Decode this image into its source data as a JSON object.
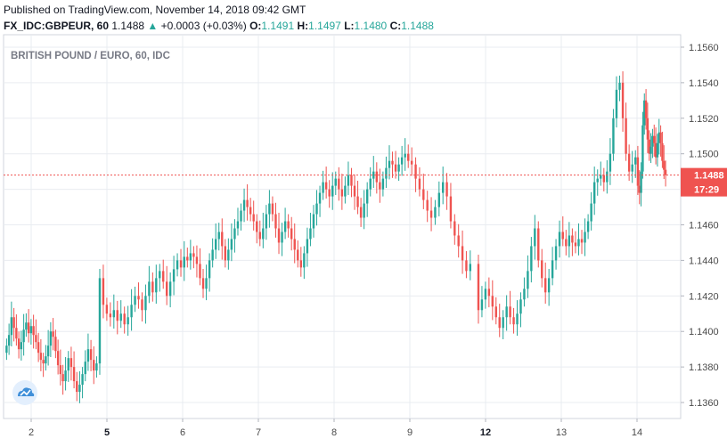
{
  "header": {
    "published": "Published on TradingView.com, November 14, 2018 09:42 GMT",
    "symbol": "FX_IDC:GBPEUR, 60",
    "last": "1.1488",
    "change_arrow": "▲",
    "change": "+0.0003 (+0.03%)",
    "o_label": "O:",
    "o_value": "1.1491",
    "h_label": "H:",
    "h_value": "1.1497",
    "l_label": "L:",
    "l_value": "1.1480",
    "c_label": "C:",
    "c_value": "1.1488"
  },
  "colors": {
    "up": "#26a69a",
    "down": "#ef5350",
    "grid": "#e9ecf1",
    "price_line": "#ef5350",
    "tag_bg": "#ef5350"
  },
  "icons": {
    "watermark": "tradingview-cloud-icon"
  },
  "chart_data": {
    "type": "candlestick",
    "title": "BRITISH POUND / EURO, 60, IDC",
    "y_ticks": [
      "1.1360",
      "1.1380",
      "1.1400",
      "1.1420",
      "1.1440",
      "1.1460",
      "1.1480",
      "1.1500",
      "1.1520",
      "1.1540",
      "1.1560"
    ],
    "ylim": [
      1.1351,
      1.1567
    ],
    "x_ticks": [
      {
        "label": "2",
        "bold": false
      },
      {
        "label": "5",
        "bold": true
      },
      {
        "label": "6",
        "bold": false
      },
      {
        "label": "7",
        "bold": false
      },
      {
        "label": "8",
        "bold": false
      },
      {
        "label": "9",
        "bold": false
      },
      {
        "label": "12",
        "bold": true
      },
      {
        "label": "13",
        "bold": false
      },
      {
        "label": "14",
        "bold": false
      }
    ],
    "last_price": "1.1488",
    "countdown": "17:29",
    "grid": true,
    "series_close": [
      {
        "day": "2",
        "values": [
          1.1392,
          1.1398,
          1.1408,
          1.1402,
          1.1396,
          1.139,
          1.1394,
          1.1401,
          1.1405,
          1.1399,
          1.1403,
          1.1398,
          1.1394,
          1.1388,
          1.1384,
          1.1382,
          1.1386,
          1.1392,
          1.14,
          1.1397,
          1.1389,
          1.1381,
          1.1376,
          1.1372
        ]
      },
      {
        "day": "2 (cont.)",
        "values": [
          1.1378,
          1.1385,
          1.138,
          1.1372,
          1.1366,
          1.137,
          1.1376,
          1.1383,
          1.139,
          1.1384,
          1.1378,
          1.1382
        ]
      },
      {
        "day": "5",
        "values": [
          1.143,
          1.1415,
          1.141,
          1.1408,
          1.1412,
          1.1406,
          1.141,
          1.1404,
          1.1408,
          1.1415,
          1.142,
          1.1418,
          1.1412,
          1.142,
          1.1428,
          1.1422,
          1.143,
          1.1434,
          1.1428,
          1.142,
          1.1428,
          1.1435,
          1.144,
          1.1436
        ]
      },
      {
        "day": "6",
        "values": [
          1.1442,
          1.144,
          1.1444,
          1.1442,
          1.1438,
          1.143,
          1.1424,
          1.143,
          1.144,
          1.1446,
          1.1452,
          1.1456,
          1.1448,
          1.144,
          1.1446,
          1.1452,
          1.1458,
          1.1462,
          1.1468,
          1.1474,
          1.147,
          1.1466,
          1.1462,
          1.1456
        ]
      },
      {
        "day": "7",
        "values": [
          1.1452,
          1.1458,
          1.1466,
          1.1472,
          1.1466,
          1.1458,
          1.145,
          1.1456,
          1.1462,
          1.1458,
          1.1452,
          1.1446,
          1.144,
          1.1436,
          1.1444,
          1.1452,
          1.1458,
          1.1466,
          1.1472,
          1.1478,
          1.1484,
          1.148,
          1.1476,
          1.1482
        ]
      },
      {
        "day": "8",
        "values": [
          1.1486,
          1.148,
          1.1476,
          1.1482,
          1.1488,
          1.1482,
          1.1476,
          1.147,
          1.1464,
          1.1472,
          1.148,
          1.1486,
          1.149,
          1.1484,
          1.148,
          1.1486,
          1.1492,
          1.1496,
          1.1494,
          1.149,
          1.1494,
          1.1498,
          1.15,
          1.1496
        ]
      },
      {
        "day": "9",
        "values": [
          1.1494,
          1.1486,
          1.148,
          1.1474,
          1.1468,
          1.1464,
          1.147,
          1.1478,
          1.1484,
          1.1476,
          1.1462,
          1.1454,
          1.1448,
          1.144,
          1.1434,
          1.1438
        ]
      },
      {
        "day": "12",
        "values": [
          1.1412,
          1.1418,
          1.1424,
          1.142,
          1.1414,
          1.1408,
          1.1402,
          1.1408,
          1.1414,
          1.1408,
          1.1404,
          1.141,
          1.1418,
          1.1424,
          1.1434,
          1.1448,
          1.1458,
          1.144,
          1.143,
          1.1422,
          1.143,
          1.144,
          1.1448,
          1.1456
        ]
      },
      {
        "day": "13",
        "values": [
          1.1452,
          1.1448,
          1.1454,
          1.145,
          1.1448,
          1.1452,
          1.145,
          1.1456,
          1.1462,
          1.1472,
          1.1484,
          1.1486,
          1.1488,
          1.1484,
          1.149,
          1.15,
          1.152,
          1.1536,
          1.154,
          1.152,
          1.15,
          1.149,
          1.1494,
          1.1498
        ]
      },
      {
        "day": "14",
        "values": [
          1.1482,
          1.1478,
          1.149,
          1.1516,
          1.153,
          1.152,
          1.1508,
          1.15,
          1.1504,
          1.151,
          1.1506,
          1.1498,
          1.1506,
          1.1512,
          1.1506,
          1.1496,
          1.1491,
          1.1488
        ]
      }
    ]
  }
}
